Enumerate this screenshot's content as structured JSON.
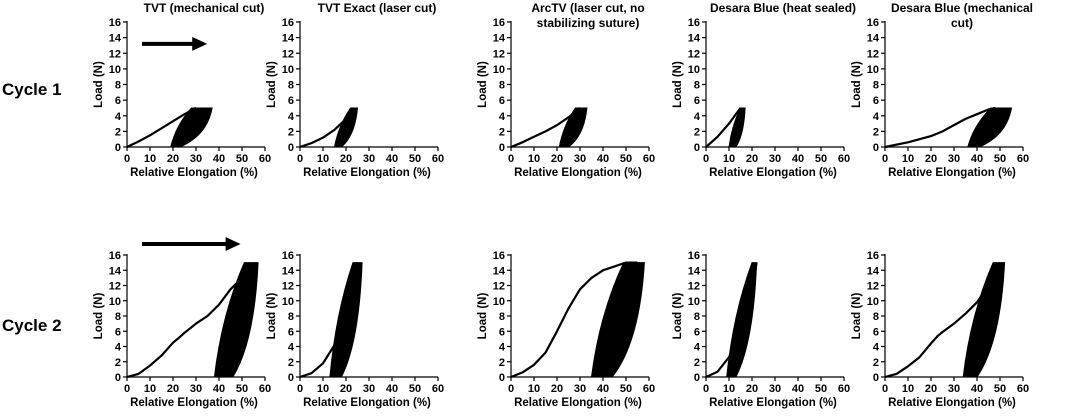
{
  "figure": {
    "row_labels": [
      "Cycle 1",
      "Cycle 2"
    ]
  },
  "chart_data": [
    {
      "type": "line",
      "title": "TVT (mechanical cut)",
      "row": "Cycle 1",
      "xlabel": "Relative Elongation (%)",
      "ylabel": "Load (N)",
      "xlim": [
        0,
        60
      ],
      "ylim": [
        0,
        16
      ],
      "xticks": [
        0,
        10,
        20,
        30,
        40,
        50,
        60
      ],
      "yticks": [
        0,
        2,
        4,
        6,
        8,
        10,
        12,
        14,
        16
      ],
      "arrow": true,
      "loading_curve": {
        "x": [
          0,
          5,
          10,
          15,
          20,
          25,
          28,
          30
        ],
        "y": [
          0,
          0.7,
          1.5,
          2.4,
          3.3,
          4.2,
          4.7,
          5
        ]
      },
      "hysteresis_band": {
        "x_min_at_zero": 19,
        "x_max_at_zero": 23,
        "x_min_at_peak": 28,
        "x_max_at_peak": 37,
        "peak_load": 5
      }
    },
    {
      "type": "line",
      "title": "TVT Exact (laser cut)",
      "row": "Cycle 1",
      "xlabel": "Relative Elongation (%)",
      "ylabel": "Load (N)",
      "xlim": [
        0,
        60
      ],
      "ylim": [
        0,
        16
      ],
      "xticks": [
        0,
        10,
        20,
        30,
        40,
        50,
        60
      ],
      "yticks": [
        0,
        2,
        4,
        6,
        8,
        10,
        12,
        14,
        16
      ],
      "arrow": false,
      "loading_curve": {
        "x": [
          0,
          5,
          10,
          15,
          20,
          23
        ],
        "y": [
          0,
          0.5,
          1.2,
          2.2,
          3.6,
          5
        ]
      },
      "hysteresis_band": {
        "x_min_at_zero": 15,
        "x_max_at_zero": 18,
        "x_min_at_peak": 22,
        "x_max_at_peak": 25,
        "peak_load": 5
      }
    },
    {
      "type": "line",
      "title": "ArcTV (laser cut, no stabilizing suture)",
      "row": "Cycle 1",
      "xlabel": "Relative Elongation (%)",
      "ylabel": "Load (N)",
      "xlim": [
        0,
        60
      ],
      "ylim": [
        0,
        16
      ],
      "xticks": [
        0,
        10,
        20,
        30,
        40,
        50,
        60
      ],
      "yticks": [
        0,
        2,
        4,
        6,
        8,
        10,
        12,
        14,
        16
      ],
      "arrow": false,
      "loading_curve": {
        "x": [
          0,
          5,
          10,
          15,
          20,
          25,
          28,
          30
        ],
        "y": [
          0,
          0.6,
          1.3,
          2,
          2.8,
          3.8,
          4.5,
          5
        ]
      },
      "hysteresis_band": {
        "x_min_at_zero": 21,
        "x_max_at_zero": 25,
        "x_min_at_peak": 28,
        "x_max_at_peak": 33,
        "peak_load": 5
      }
    },
    {
      "type": "line",
      "title": "Desara Blue (heat sealed)",
      "row": "Cycle 1",
      "xlabel": "Relative Elongation (%)",
      "ylabel": "Load (N)",
      "xlim": [
        0,
        60
      ],
      "ylim": [
        0,
        16
      ],
      "xticks": [
        0,
        10,
        20,
        30,
        40,
        50,
        60
      ],
      "yticks": [
        0,
        2,
        4,
        6,
        8,
        10,
        12,
        14,
        16
      ],
      "arrow": false,
      "loading_curve": {
        "x": [
          0,
          5,
          10,
          15
        ],
        "y": [
          0,
          1.3,
          3,
          5
        ]
      },
      "hysteresis_band": {
        "x_min_at_zero": 10,
        "x_max_at_zero": 13,
        "x_min_at_peak": 15,
        "x_max_at_peak": 17,
        "peak_load": 5
      }
    },
    {
      "type": "line",
      "title": "Desara Blue (mechanical cut)",
      "row": "Cycle 1",
      "xlabel": "Relative Elongation (%)",
      "ylabel": "Load (N)",
      "xlim": [
        0,
        60
      ],
      "ylim": [
        0,
        16
      ],
      "xticks": [
        0,
        10,
        20,
        30,
        40,
        50,
        60
      ],
      "yticks": [
        0,
        2,
        4,
        6,
        8,
        10,
        12,
        14,
        16
      ],
      "arrow": false,
      "loading_curve": {
        "x": [
          0,
          10,
          20,
          25,
          30,
          35,
          40,
          45,
          48
        ],
        "y": [
          0,
          0.6,
          1.4,
          2,
          2.8,
          3.6,
          4.2,
          4.8,
          5
        ]
      },
      "hysteresis_band": {
        "x_min_at_zero": 36,
        "x_max_at_zero": 41,
        "x_min_at_peak": 46,
        "x_max_at_peak": 55,
        "peak_load": 5
      }
    },
    {
      "type": "line",
      "title": "",
      "row": "Cycle 2",
      "xlabel": "Relative Elongation (%)",
      "ylabel": "Load (N)",
      "xlim": [
        0,
        60
      ],
      "ylim": [
        0,
        16
      ],
      "xticks": [
        0,
        10,
        20,
        30,
        40,
        50,
        60
      ],
      "yticks": [
        0,
        2,
        4,
        6,
        8,
        10,
        12,
        14,
        16
      ],
      "arrow": true,
      "loading_curve": {
        "x": [
          0,
          5,
          10,
          15,
          20,
          22,
          25,
          30,
          35,
          40,
          45,
          50,
          53,
          56
        ],
        "y": [
          0,
          0.4,
          1.5,
          2.8,
          4.5,
          5,
          5.8,
          7,
          8,
          9.5,
          11.5,
          13,
          14,
          15
        ]
      },
      "hysteresis_band": {
        "x_min_at_zero": 38,
        "x_max_at_zero": 46,
        "x_min_at_peak": 51,
        "x_max_at_peak": 57,
        "peak_load": 15
      }
    },
    {
      "type": "line",
      "title": "",
      "row": "Cycle 2",
      "xlabel": "Relative Elongation (%)",
      "ylabel": "Load (N)",
      "xlim": [
        0,
        60
      ],
      "ylim": [
        0,
        16
      ],
      "xticks": [
        0,
        10,
        20,
        30,
        40,
        50,
        60
      ],
      "yticks": [
        0,
        2,
        4,
        6,
        8,
        10,
        12,
        14,
        16
      ],
      "arrow": false,
      "loading_curve": {
        "x": [
          0,
          5,
          10,
          15,
          20,
          25
        ],
        "y": [
          0,
          0.5,
          1.8,
          4.2,
          8.5,
          15
        ]
      },
      "hysteresis_band": {
        "x_min_at_zero": 13,
        "x_max_at_zero": 18,
        "x_min_at_peak": 23,
        "x_max_at_peak": 27,
        "peak_load": 15
      }
    },
    {
      "type": "line",
      "title": "",
      "row": "Cycle 2",
      "xlabel": "Relative Elongation (%)",
      "ylabel": "Load (N)",
      "xlim": [
        0,
        60
      ],
      "ylim": [
        0,
        16
      ],
      "xticks": [
        0,
        10,
        20,
        30,
        40,
        50,
        60
      ],
      "yticks": [
        0,
        2,
        4,
        6,
        8,
        10,
        12,
        14,
        16
      ],
      "arrow": false,
      "loading_curve": {
        "x": [
          0,
          5,
          10,
          15,
          20,
          25,
          30,
          35,
          40,
          45,
          50,
          55
        ],
        "y": [
          0,
          0.6,
          1.6,
          3.2,
          6,
          9,
          11.5,
          13,
          14,
          14.5,
          15,
          15
        ]
      },
      "hysteresis_band": {
        "x_min_at_zero": 35,
        "x_max_at_zero": 44,
        "x_min_at_peak": 49,
        "x_max_at_peak": 58,
        "peak_load": 15
      }
    },
    {
      "type": "line",
      "title": "",
      "row": "Cycle 2",
      "xlabel": "Relative Elongation (%)",
      "ylabel": "Load (N)",
      "xlim": [
        0,
        60
      ],
      "ylim": [
        0,
        16
      ],
      "xticks": [
        0,
        10,
        20,
        30,
        40,
        50,
        60
      ],
      "yticks": [
        0,
        2,
        4,
        6,
        8,
        10,
        12,
        14,
        16
      ],
      "arrow": false,
      "loading_curve": {
        "x": [
          0,
          5,
          10,
          15,
          20,
          22
        ],
        "y": [
          0,
          0.7,
          2.6,
          5.8,
          11,
          15
        ]
      },
      "hysteresis_band": {
        "x_min_at_zero": 9,
        "x_max_at_zero": 13,
        "x_min_at_peak": 20,
        "x_max_at_peak": 22,
        "peak_load": 15
      }
    },
    {
      "type": "line",
      "title": "",
      "row": "Cycle 2",
      "xlabel": "Relative Elongation (%)",
      "ylabel": "Load (N)",
      "xlim": [
        0,
        60
      ],
      "ylim": [
        0,
        16
      ],
      "xticks": [
        0,
        10,
        20,
        30,
        40,
        50,
        60
      ],
      "yticks": [
        0,
        2,
        4,
        6,
        8,
        10,
        12,
        14,
        16
      ],
      "arrow": false,
      "loading_curve": {
        "x": [
          0,
          5,
          10,
          15,
          20,
          23,
          25,
          30,
          35,
          40,
          45,
          48,
          50
        ],
        "y": [
          0,
          0.4,
          1.4,
          2.6,
          4.4,
          5.4,
          5.9,
          7,
          8.3,
          9.8,
          12,
          13.8,
          15
        ]
      },
      "hysteresis_band": {
        "x_min_at_zero": 34,
        "x_max_at_zero": 40,
        "x_min_at_peak": 47,
        "x_max_at_peak": 52,
        "peak_load": 15
      }
    }
  ]
}
